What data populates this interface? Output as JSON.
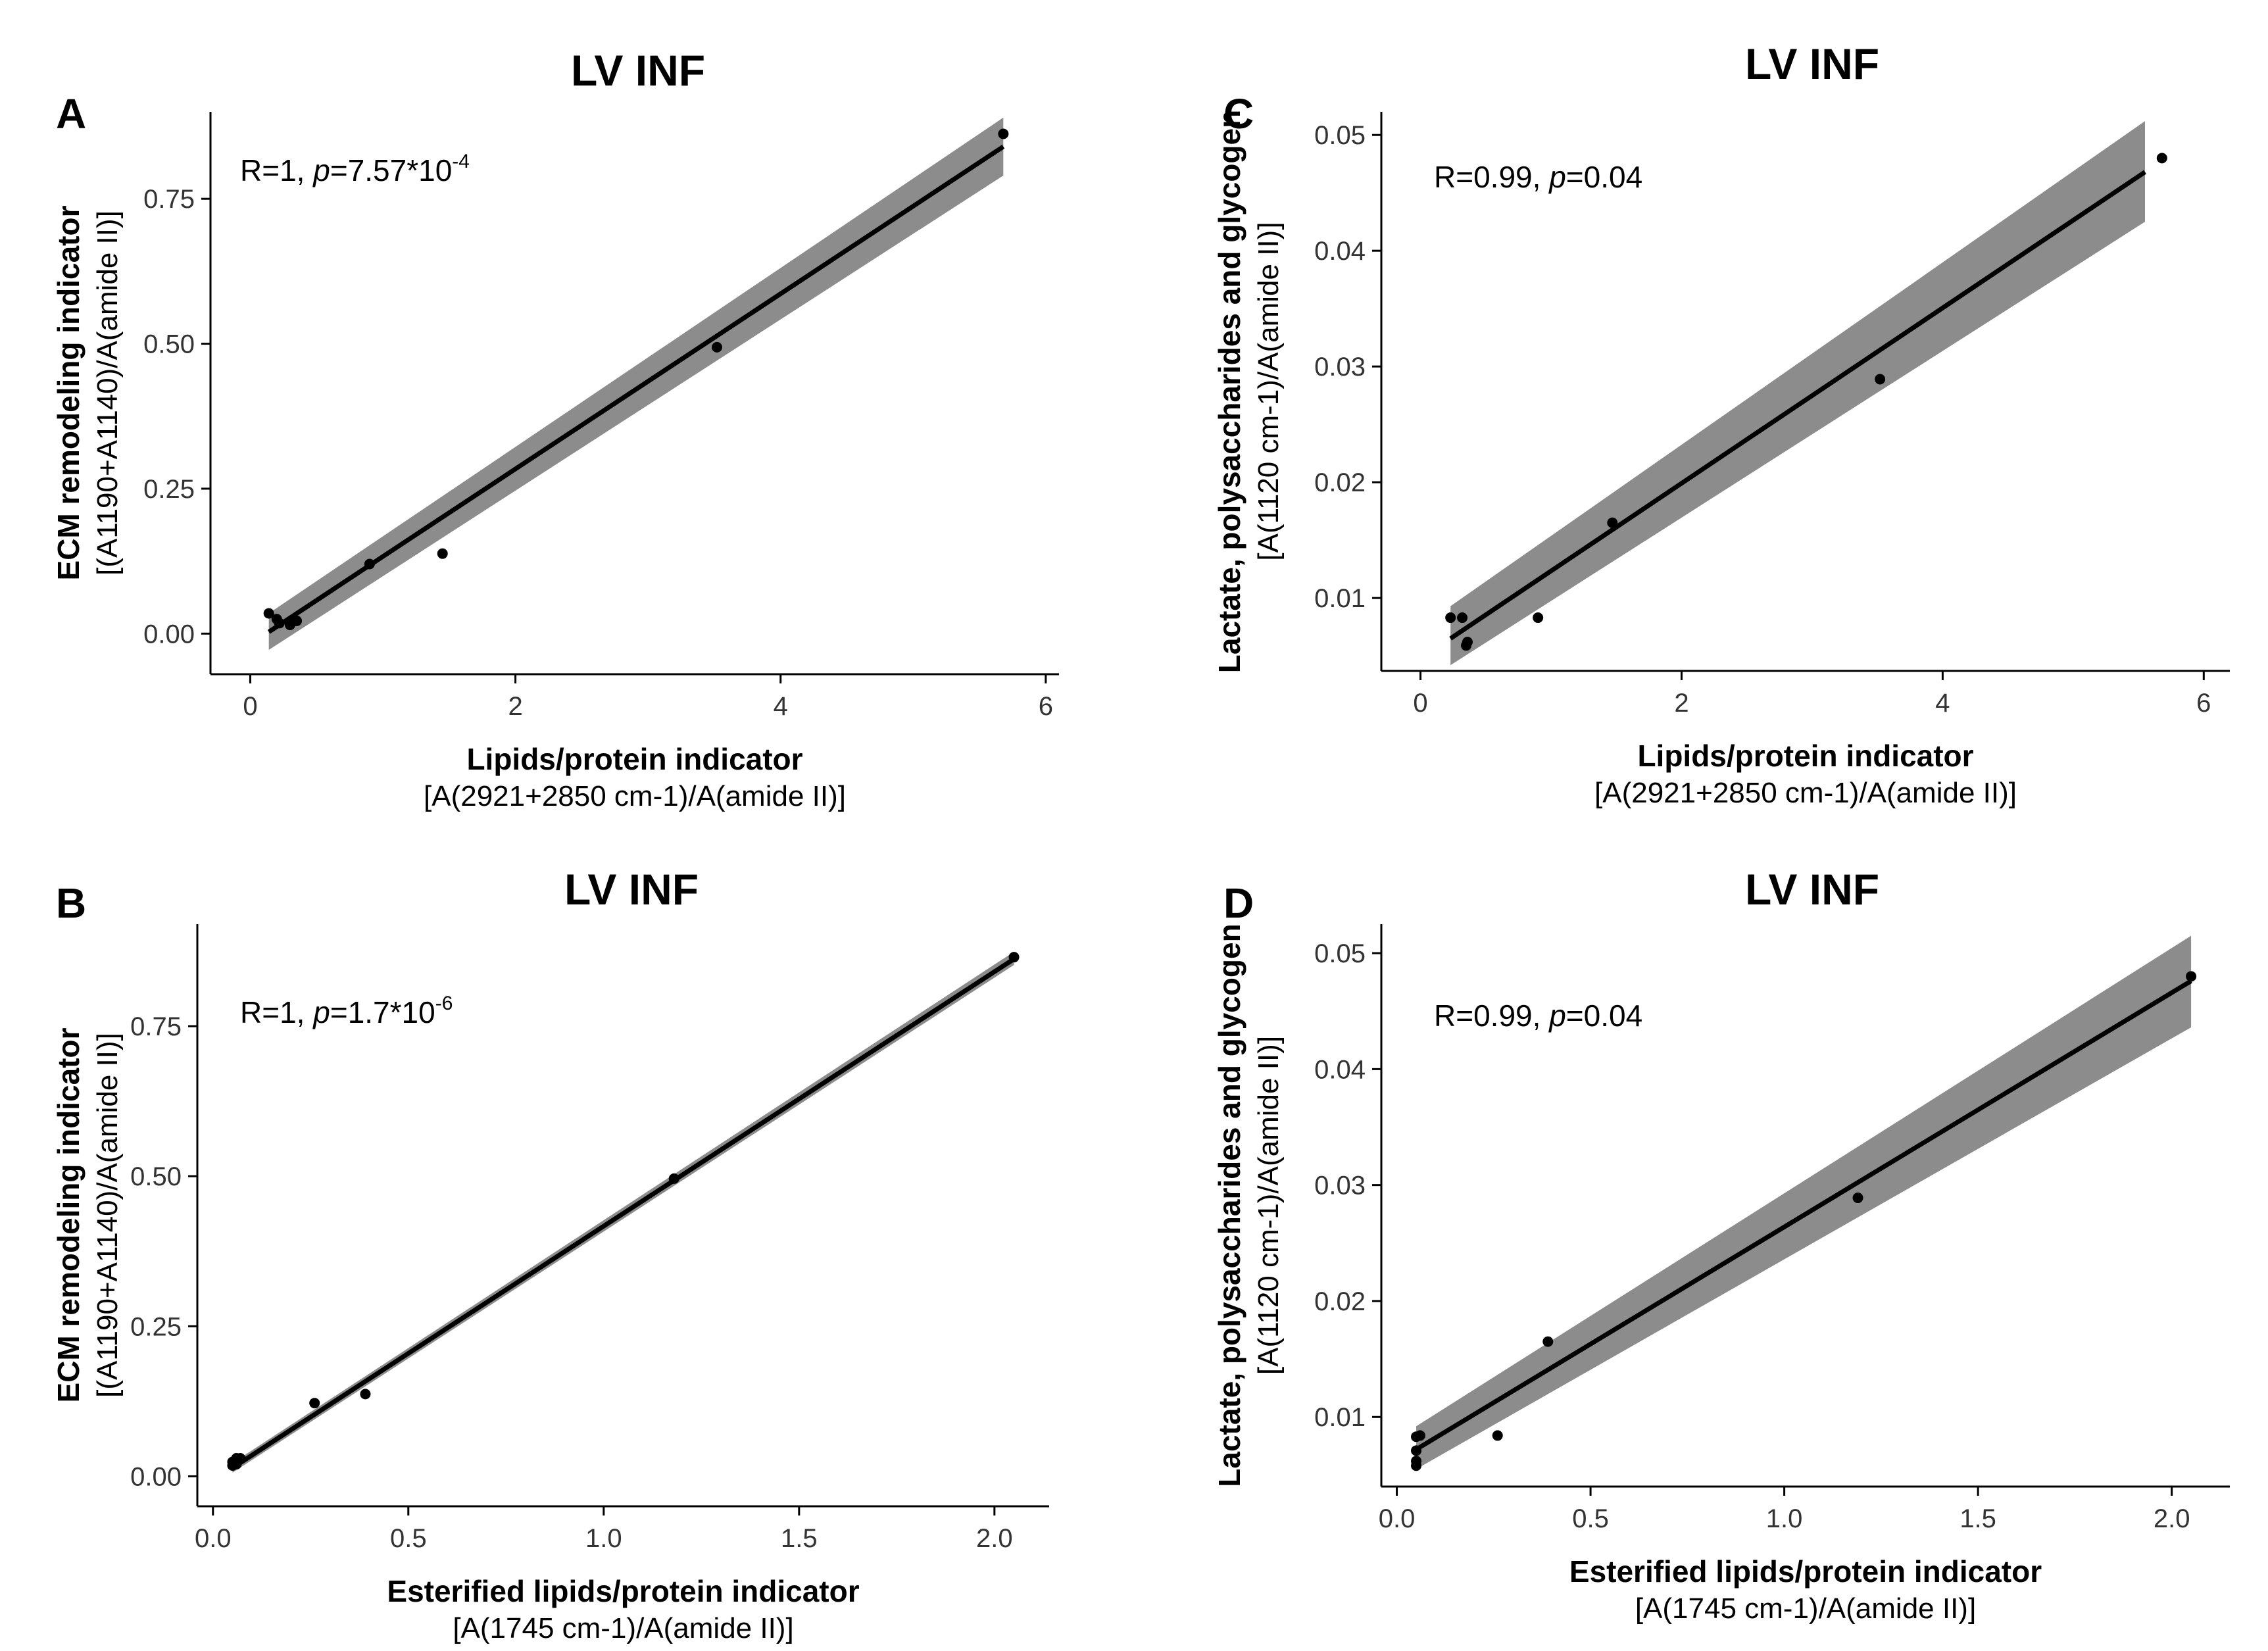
{
  "chart_data": [
    {
      "type": "scatter",
      "panel": "A",
      "title": "LV INF",
      "xlabel": "Lipids/protein indicator",
      "xlabel_sub": "[A(2921+2850 cm-1)/A(amide II)]",
      "ylabel": "ECM remodeling indicator",
      "ylabel_sub": "[(A1190+A1140)/A(amide II)]",
      "annotation": {
        "prefix": "R=1, ",
        "p": "p",
        "rest": "=7.57*10",
        "sup": "-4"
      },
      "xlim": [
        -0.3,
        6.1
      ],
      "ylim": [
        -0.07,
        0.9
      ],
      "xticks": [
        0,
        2,
        4,
        6
      ],
      "xtick_labels": [
        "0",
        "2",
        "4",
        "6"
      ],
      "yticks": [
        0,
        0.25,
        0.5,
        0.75
      ],
      "ytick_labels": [
        "0.00",
        "0.25",
        "0.50",
        "0.75"
      ],
      "points": {
        "x": [
          0.14,
          0.2,
          0.22,
          0.3,
          0.35,
          0.9,
          1.45,
          3.52,
          5.68
        ],
        "y": [
          0.035,
          0.025,
          0.018,
          0.015,
          0.022,
          0.12,
          0.138,
          0.494,
          0.862
        ]
      },
      "fit": {
        "x": [
          0.14,
          5.68
        ],
        "y": [
          0.003,
          0.84
        ],
        "ci_lower": [
          -0.028,
          0.79
        ],
        "ci_upper": [
          0.035,
          0.89
        ]
      },
      "grid": false
    },
    {
      "type": "scatter",
      "panel": "B",
      "title": "LV INF",
      "xlabel": "Esterified lipids/protein indicator",
      "xlabel_sub": "[A(1745 cm-1)/A(amide II)]",
      "ylabel": "ECM remodeling indicator",
      "ylabel_sub": "[(A1190+A1140)/A(amide II)]",
      "annotation": {
        "prefix": "R=1, ",
        "p": "p",
        "rest": "=1.7*10",
        "sup": "-6"
      },
      "xlim": [
        -0.04,
        2.14
      ],
      "ylim": [
        -0.05,
        0.92
      ],
      "xticks": [
        0,
        0.5,
        1,
        1.5,
        2
      ],
      "xtick_labels": [
        "0.0",
        "0.5",
        "1.0",
        "1.5",
        "2.0"
      ],
      "yticks": [
        0,
        0.25,
        0.5,
        0.75
      ],
      "ytick_labels": [
        "0.00",
        "0.25",
        "0.50",
        "0.75"
      ],
      "points": {
        "x": [
          0.05,
          0.05,
          0.06,
          0.06,
          0.07,
          0.26,
          0.39,
          1.18,
          2.05
        ],
        "y": [
          0.018,
          0.024,
          0.03,
          0.02,
          0.03,
          0.122,
          0.137,
          0.496,
          0.865
        ]
      },
      "fit": {
        "x": [
          0.05,
          2.05
        ],
        "y": [
          0.014,
          0.862
        ],
        "ci_lower": [
          0.006,
          0.852
        ],
        "ci_upper": [
          0.022,
          0.874
        ]
      },
      "grid": false
    },
    {
      "type": "scatter",
      "panel": "C",
      "title": "LV INF",
      "xlabel": "Lipids/protein indicator",
      "xlabel_sub": "[A(2921+2850 cm-1)/A(amide II)]",
      "ylabel": "Lactate, polysaccharides  and glycogen",
      "ylabel_sub": "[A(1120 cm-1)/A(amide II)]",
      "annotation": {
        "prefix": "R=0.99, ",
        "p": "p",
        "rest": "=0.04",
        "sup": ""
      },
      "xlim": [
        -0.3,
        6.2
      ],
      "ylim": [
        0.0037,
        0.052
      ],
      "xticks": [
        0,
        2,
        4,
        6
      ],
      "xtick_labels": [
        "0",
        "2",
        "4",
        "6"
      ],
      "yticks": [
        0.01,
        0.02,
        0.03,
        0.04,
        0.05
      ],
      "ytick_labels": [
        "0.01",
        "0.02",
        "0.03",
        "0.04",
        "0.05"
      ],
      "points": {
        "x": [
          0.23,
          0.32,
          0.36,
          0.35,
          0.9,
          1.47,
          3.52,
          5.68
        ],
        "y": [
          0.0083,
          0.0083,
          0.0062,
          0.0059,
          0.0083,
          0.0165,
          0.0289,
          0.048
        ]
      },
      "fit": {
        "x": [
          0.23,
          5.55
        ],
        "y": [
          0.0065,
          0.0468
        ],
        "ci_lower": [
          0.0042,
          0.0425
        ],
        "ci_upper": [
          0.0093,
          0.0512
        ]
      },
      "grid": false
    },
    {
      "type": "scatter",
      "panel": "D",
      "title": "LV INF",
      "xlabel": "Esterified lipids/protein indicator",
      "xlabel_sub": "[A(1745 cm-1)/A(amide II)]",
      "ylabel": "Lactate, polysaccharides  and glycogen",
      "ylabel_sub": "[A(1120 cm-1)/A(amide II)]",
      "annotation": {
        "prefix": "R=0.99, ",
        "p": "p",
        "rest": "=0.04",
        "sup": ""
      },
      "xlim": [
        -0.04,
        2.15
      ],
      "ylim": [
        0.004,
        0.0525
      ],
      "xticks": [
        0,
        0.5,
        1,
        1.5,
        2
      ],
      "xtick_labels": [
        "0.0",
        "0.5",
        "1.0",
        "1.5",
        "2.0"
      ],
      "yticks": [
        0.01,
        0.02,
        0.03,
        0.04,
        0.05
      ],
      "ytick_labels": [
        "0.01",
        "0.02",
        "0.03",
        "0.04",
        "0.05"
      ],
      "points": {
        "x": [
          0.05,
          0.05,
          0.05,
          0.05,
          0.06,
          0.26,
          0.39,
          1.19,
          2.05
        ],
        "y": [
          0.0083,
          0.0071,
          0.0062,
          0.0058,
          0.0084,
          0.0084,
          0.0165,
          0.0289,
          0.048
        ]
      },
      "fit": {
        "x": [
          0.05,
          2.05
        ],
        "y": [
          0.0072,
          0.0476
        ],
        "ci_lower": [
          0.0055,
          0.0436
        ],
        "ci_upper": [
          0.0092,
          0.0515
        ]
      },
      "grid": false
    }
  ]
}
